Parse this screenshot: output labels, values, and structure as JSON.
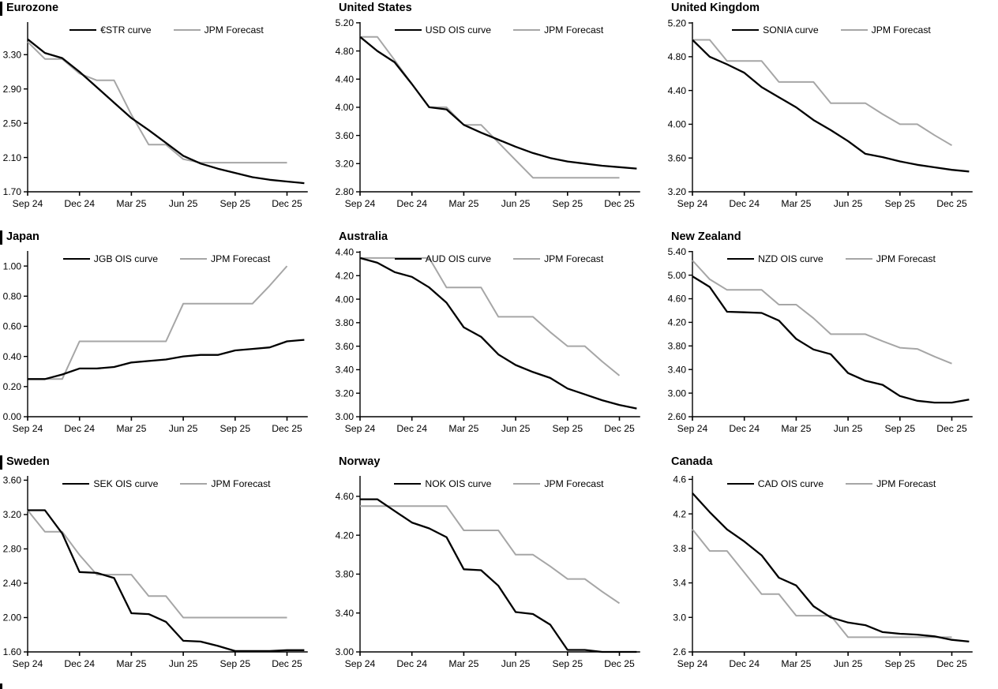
{
  "page": {
    "description": "3x3 grid of policy-rate OIS curve charts vs JPM forecasts",
    "x_tick_labels_shared": [
      "Sep 24",
      "Dec 24",
      "Mar 25",
      "Jun 25",
      "Sep 25",
      "Dec 25"
    ],
    "colors": {
      "curve": "#000000",
      "forecast": "#a6a6a6",
      "axis": "#000000"
    }
  },
  "chart_data": [
    {
      "type": "line",
      "title": "Eurozone",
      "x_ticks": [
        "Sep 24",
        "Dec 24",
        "Mar 25",
        "Jun 25",
        "Sep 25",
        "Dec 25"
      ],
      "y_ticks": [
        "1.70",
        "2.10",
        "2.50",
        "2.90",
        "3.30"
      ],
      "ylim": [
        1.7,
        3.68
      ],
      "legend_position": "top-center",
      "series": [
        {
          "name": "€STR curve",
          "color": "#000000",
          "values": [
            3.48,
            3.32,
            3.26,
            3.1,
            2.92,
            2.74,
            2.56,
            2.42,
            2.27,
            2.12,
            2.03,
            1.97,
            1.92,
            1.87,
            1.84,
            1.82,
            1.8
          ]
        },
        {
          "name": "JPM Forecast",
          "color": "#a6a6a6",
          "values": [
            3.45,
            3.25,
            3.25,
            3.08,
            3.0,
            3.0,
            2.6,
            2.25,
            2.25,
            2.08,
            2.04,
            2.04,
            2.04,
            2.04,
            2.04,
            2.04
          ]
        }
      ]
    },
    {
      "type": "line",
      "title": "United States",
      "x_ticks": [
        "Sep 24",
        "Dec 24",
        "Mar 25",
        "Jun 25",
        "Sep 25",
        "Dec 25"
      ],
      "y_ticks": [
        "2.80",
        "3.20",
        "3.60",
        "4.00",
        "4.40",
        "4.80",
        "5.20"
      ],
      "ylim": [
        2.8,
        5.21
      ],
      "legend_position": "top-center",
      "series": [
        {
          "name": "USD OIS curve",
          "color": "#000000",
          "values": [
            5.0,
            4.8,
            4.64,
            4.33,
            4.0,
            3.97,
            3.75,
            3.64,
            3.54,
            3.44,
            3.35,
            3.28,
            3.23,
            3.2,
            3.17,
            3.15,
            3.13
          ]
        },
        {
          "name": "JPM Forecast",
          "color": "#a6a6a6",
          "values": [
            5.0,
            5.0,
            4.67,
            4.33,
            4.0,
            4.0,
            3.75,
            3.75,
            3.5,
            3.25,
            3.0,
            3.0,
            3.0,
            3.0,
            3.0,
            3.0
          ]
        }
      ]
    },
    {
      "type": "line",
      "title": "United Kingdom",
      "x_ticks": [
        "Sep 24",
        "Dec 24",
        "Mar 25",
        "Jun 25",
        "Sep 25",
        "Dec 25"
      ],
      "y_ticks": [
        "3.20",
        "3.60",
        "4.00",
        "4.40",
        "4.80",
        "5.20"
      ],
      "ylim": [
        3.2,
        5.21
      ],
      "legend_position": "top-center",
      "series": [
        {
          "name": "SONIA curve",
          "color": "#000000",
          "values": [
            5.0,
            4.8,
            4.71,
            4.61,
            4.44,
            4.32,
            4.2,
            4.05,
            3.93,
            3.8,
            3.65,
            3.61,
            3.56,
            3.52,
            3.49,
            3.46,
            3.44
          ]
        },
        {
          "name": "JPM Forecast",
          "color": "#a6a6a6",
          "values": [
            5.0,
            5.0,
            4.75,
            4.75,
            4.75,
            4.5,
            4.5,
            4.5,
            4.25,
            4.25,
            4.25,
            4.12,
            4.0,
            4.0,
            3.87,
            3.75
          ]
        }
      ]
    },
    {
      "type": "line",
      "title": "Japan",
      "x_ticks": [
        "Sep 24",
        "Dec 24",
        "Mar 25",
        "Jun 25",
        "Sep 25",
        "Dec 25"
      ],
      "y_ticks": [
        "0.00",
        "0.20",
        "0.40",
        "0.60",
        "0.80",
        "1.00"
      ],
      "ylim": [
        0.0,
        1.1
      ],
      "legend_position": "top-center",
      "series": [
        {
          "name": "JGB OIS curve",
          "color": "#000000",
          "values": [
            0.25,
            0.25,
            0.28,
            0.32,
            0.32,
            0.33,
            0.36,
            0.37,
            0.38,
            0.4,
            0.41,
            0.41,
            0.44,
            0.45,
            0.46,
            0.5,
            0.51
          ]
        },
        {
          "name": "JPM Forecast",
          "color": "#a6a6a6",
          "values": [
            0.25,
            0.25,
            0.25,
            0.5,
            0.5,
            0.5,
            0.5,
            0.5,
            0.5,
            0.75,
            0.75,
            0.75,
            0.75,
            0.75,
            0.87,
            1.0
          ]
        }
      ]
    },
    {
      "type": "line",
      "title": "Australia",
      "x_ticks": [
        "Sep 24",
        "Dec 24",
        "Mar 25",
        "Jun 25",
        "Sep 25",
        "Dec 25"
      ],
      "y_ticks": [
        "3.00",
        "3.20",
        "3.40",
        "3.60",
        "3.80",
        "4.00",
        "4.20",
        "4.40"
      ],
      "ylim": [
        3.0,
        4.41
      ],
      "legend_position": "top-center",
      "series": [
        {
          "name": "AUD OIS curve",
          "color": "#000000",
          "values": [
            4.35,
            4.31,
            4.23,
            4.19,
            4.1,
            3.97,
            3.76,
            3.68,
            3.53,
            3.44,
            3.38,
            3.33,
            3.24,
            3.19,
            3.14,
            3.1,
            3.07
          ]
        },
        {
          "name": "JPM Forecast",
          "color": "#a6a6a6",
          "values": [
            4.35,
            4.35,
            4.35,
            4.35,
            4.35,
            4.1,
            4.1,
            4.1,
            3.85,
            3.85,
            3.85,
            3.72,
            3.6,
            3.6,
            3.47,
            3.35
          ]
        }
      ]
    },
    {
      "type": "line",
      "title": "New Zealand",
      "x_ticks": [
        "Sep 24",
        "Dec 24",
        "Mar 25",
        "Jun 25",
        "Sep 25",
        "Dec 25"
      ],
      "y_ticks": [
        "2.60",
        "3.00",
        "3.40",
        "3.80",
        "4.20",
        "4.60",
        "5.00",
        "5.40"
      ],
      "ylim": [
        2.6,
        5.41
      ],
      "legend_position": "top-center",
      "series": [
        {
          "name": "NZD OIS curve",
          "color": "#000000",
          "values": [
            4.98,
            4.8,
            4.38,
            4.37,
            4.36,
            4.23,
            3.92,
            3.74,
            3.66,
            3.34,
            3.21,
            3.14,
            2.95,
            2.87,
            2.84,
            2.84,
            2.89
          ]
        },
        {
          "name": "JPM Forecast",
          "color": "#a6a6a6",
          "values": [
            5.25,
            4.93,
            4.75,
            4.75,
            4.75,
            4.5,
            4.5,
            4.27,
            4.0,
            4.0,
            4.0,
            3.88,
            3.77,
            3.75,
            3.62,
            3.5
          ]
        }
      ]
    },
    {
      "type": "line",
      "title": "Sweden",
      "x_ticks": [
        "Sep 24",
        "Dec 24",
        "Mar 25",
        "Jun 25",
        "Sep 25",
        "Dec 25"
      ],
      "y_ticks": [
        "1.60",
        "2.00",
        "2.40",
        "2.80",
        "3.20",
        "3.60"
      ],
      "ylim": [
        1.6,
        3.65
      ],
      "legend_position": "top-center",
      "series": [
        {
          "name": "SEK OIS curve",
          "color": "#000000",
          "values": [
            3.25,
            3.25,
            2.98,
            2.53,
            2.52,
            2.46,
            2.05,
            2.04,
            1.95,
            1.73,
            1.72,
            1.67,
            1.61,
            1.61,
            1.61,
            1.62,
            1.62
          ]
        },
        {
          "name": "JPM Forecast",
          "color": "#a6a6a6",
          "values": [
            3.25,
            3.0,
            3.0,
            2.73,
            2.5,
            2.5,
            2.5,
            2.25,
            2.25,
            2.0,
            2.0,
            2.0,
            2.0,
            2.0,
            2.0,
            2.0
          ]
        }
      ]
    },
    {
      "type": "line",
      "title": "Norway",
      "x_ticks": [
        "Sep 24",
        "Dec 24",
        "Mar 25",
        "Jun 25",
        "Sep 25",
        "Dec 25"
      ],
      "y_ticks": [
        "3.00",
        "3.40",
        "3.80",
        "4.20",
        "4.60"
      ],
      "ylim": [
        3.0,
        4.81
      ],
      "legend_position": "top-center",
      "series": [
        {
          "name": "NOK OIS curve",
          "color": "#000000",
          "values": [
            4.57,
            4.57,
            4.45,
            4.33,
            4.27,
            4.18,
            3.85,
            3.84,
            3.68,
            3.41,
            3.39,
            3.28,
            3.02,
            3.02,
            3.0,
            3.0,
            3.0
          ]
        },
        {
          "name": "JPM Forecast",
          "color": "#a6a6a6",
          "values": [
            4.5,
            4.5,
            4.5,
            4.5,
            4.5,
            4.5,
            4.25,
            4.25,
            4.25,
            4.0,
            4.0,
            3.88,
            3.75,
            3.75,
            3.62,
            3.5
          ]
        }
      ]
    },
    {
      "type": "line",
      "title": "Canada",
      "x_ticks": [
        "Sep 24",
        "Dec 24",
        "Mar 25",
        "Jun 25",
        "Sep 25",
        "Dec 25"
      ],
      "y_ticks": [
        "2.6",
        "3.0",
        "3.4",
        "3.8",
        "4.2",
        "4.6"
      ],
      "ylim": [
        2.6,
        4.64
      ],
      "legend_position": "top-center",
      "series": [
        {
          "name": "CAD OIS curve",
          "color": "#000000",
          "values": [
            4.44,
            4.22,
            4.02,
            3.88,
            3.72,
            3.46,
            3.37,
            3.13,
            3.0,
            2.94,
            2.91,
            2.83,
            2.81,
            2.8,
            2.78,
            2.74,
            2.72
          ]
        },
        {
          "name": "JPM Forecast",
          "color": "#a6a6a6",
          "values": [
            4.02,
            3.77,
            3.77,
            3.52,
            3.27,
            3.27,
            3.02,
            3.02,
            3.02,
            2.77,
            2.77,
            2.77,
            2.77,
            2.77,
            2.77,
            2.77
          ]
        }
      ]
    }
  ]
}
